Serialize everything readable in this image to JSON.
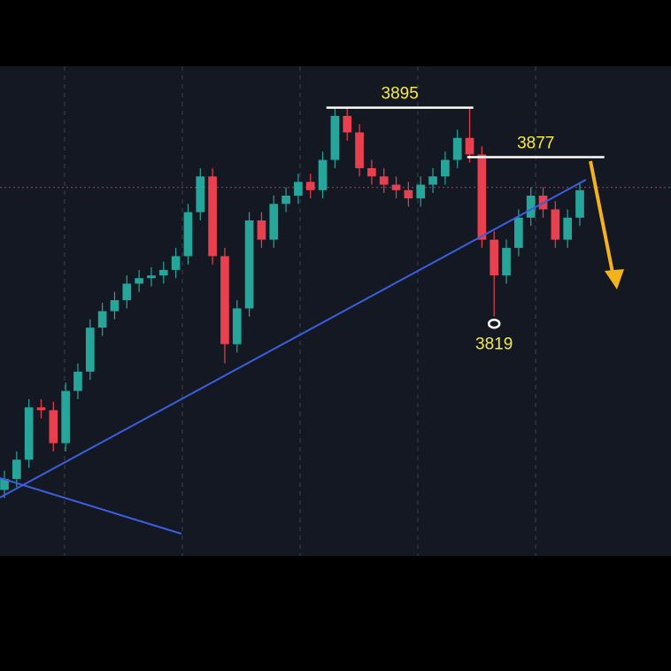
{
  "chart_data": {
    "type": "candlestick",
    "open": [
      3756,
      3760,
      3767,
      3786,
      3785,
      3773,
      3792,
      3799,
      3815,
      3821,
      3825,
      3831,
      3833,
      3834,
      3836,
      3841,
      3857,
      3870,
      3841,
      3809,
      3822,
      3854,
      3847,
      3860,
      3863,
      3868,
      3865,
      3876,
      3892,
      3886,
      3873,
      3870,
      3867,
      3865,
      3862,
      3867,
      3870,
      3876,
      3884,
      3878,
      3847,
      3834,
      3844,
      3855,
      3863,
      3858,
      3847,
      3855
    ],
    "high": [
      3763,
      3770,
      3789,
      3789,
      3788,
      3795,
      3802,
      3818,
      3824,
      3828,
      3834,
      3836,
      3837,
      3839,
      3844,
      3860,
      3873,
      3873,
      3844,
      3825,
      3857,
      3857,
      3863,
      3866,
      3871,
      3871,
      3879,
      3895,
      3895,
      3889,
      3876,
      3873,
      3870,
      3868,
      3870,
      3873,
      3879,
      3887,
      3895,
      3881,
      3850,
      3847,
      3858,
      3866,
      3866,
      3861,
      3858,
      3868
    ],
    "low": [
      3753,
      3757,
      3764,
      3782,
      3770,
      3770,
      3789,
      3796,
      3812,
      3818,
      3822,
      3828,
      3830,
      3831,
      3833,
      3838,
      3854,
      3838,
      3802,
      3806,
      3819,
      3844,
      3844,
      3857,
      3860,
      3862,
      3862,
      3873,
      3883,
      3870,
      3867,
      3864,
      3862,
      3859,
      3859,
      3864,
      3867,
      3873,
      3875,
      3844,
      3819,
      3831,
      3841,
      3852,
      3855,
      3844,
      3844,
      3852
    ],
    "close": [
      3760,
      3767,
      3786,
      3785,
      3773,
      3792,
      3799,
      3815,
      3821,
      3825,
      3831,
      3833,
      3834,
      3836,
      3841,
      3857,
      3870,
      3841,
      3809,
      3822,
      3854,
      3847,
      3860,
      3863,
      3868,
      3865,
      3876,
      3892,
      3886,
      3873,
      3870,
      3867,
      3865,
      3862,
      3867,
      3870,
      3876,
      3884,
      3878,
      3847,
      3834,
      3844,
      3855,
      3863,
      3858,
      3847,
      3855,
      3865
    ],
    "up_color": "#26a69a",
    "down_color": "#e8404f",
    "ylim": [
      3732,
      3910
    ],
    "price_line": 3866,
    "annotations": [
      {
        "text": "3895",
        "value": 3895
      },
      {
        "text": "3877",
        "value": 3877
      },
      {
        "text": "3819",
        "value": 3819
      }
    ]
  }
}
